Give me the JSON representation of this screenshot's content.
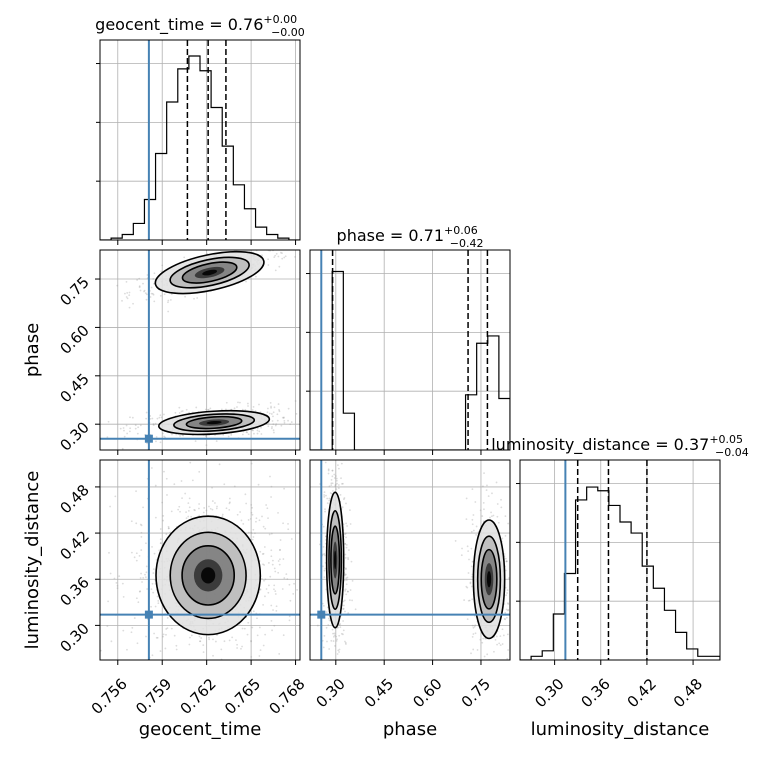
{
  "chart_data": {
    "type": "corner",
    "parameters": [
      "geocent_time",
      "phase",
      "luminosity_distance"
    ],
    "truths": [
      0.7581,
      0.255,
      0.314
    ],
    "titles": [
      {
        "main": "geocent_time = 0.76",
        "sup": "+0.00",
        "sub": "−0.00"
      },
      {
        "main": "phase = 0.71",
        "sup": "+0.06",
        "sub": "−0.42"
      },
      {
        "main": "luminosity_distance = 0.37",
        "sup": "+0.05",
        "sub": "−0.04"
      }
    ],
    "ranges": [
      [
        0.7548,
        0.7683
      ],
      [
        0.22,
        0.84
      ],
      [
        0.255,
        0.515
      ]
    ],
    "ticks": [
      {
        "values": [
          0.756,
          0.759,
          0.762,
          0.765,
          0.768
        ],
        "labels": [
          "0.756",
          "0.759",
          "0.762",
          "0.765",
          "0.768"
        ]
      },
      {
        "values": [
          0.3,
          0.45,
          0.6,
          0.75
        ],
        "labels": [
          "0.30",
          "0.45",
          "0.60",
          "0.75"
        ]
      },
      {
        "values": [
          0.3,
          0.36,
          0.42,
          0.48
        ],
        "labels": [
          "0.30",
          "0.36",
          "0.42",
          "0.48"
        ]
      }
    ],
    "quantiles": [
      [
        0.7607,
        0.7621,
        0.7633
      ],
      [
        0.29,
        0.71,
        0.77
      ],
      [
        0.33,
        0.37,
        0.42
      ]
    ],
    "histograms": [
      [
        0.0,
        0.01,
        0.03,
        0.09,
        0.22,
        0.47,
        0.75,
        0.93,
        1.0,
        0.92,
        0.72,
        0.51,
        0.3,
        0.17,
        0.07,
        0.03,
        0.01,
        0.0
      ],
      [
        0.0,
        0.0,
        0.97,
        0.2,
        0.0,
        0.0,
        0.0,
        0.0,
        0.0,
        0.0,
        0.0,
        0.0,
        0.0,
        0.0,
        0.3,
        0.58,
        0.62,
        0.28
      ],
      [
        0.0,
        0.02,
        0.05,
        0.25,
        0.47,
        0.87,
        0.94,
        0.92,
        0.84,
        0.75,
        0.69,
        0.51,
        0.39,
        0.27,
        0.15,
        0.06,
        0.02,
        0.02
      ]
    ],
    "hist2d": [
      {
        "x": 0,
        "y": 1,
        "blobs": [
          {
            "cx": 0.7622,
            "cy": 0.77,
            "sx": 0.0017,
            "sy": 0.025,
            "rho": 0.75,
            "w": 0.45
          },
          {
            "cx": 0.7625,
            "cy": 0.305,
            "sx": 0.0017,
            "sy": 0.016,
            "rho": 0.35,
            "w": 0.55
          }
        ]
      },
      {
        "x": 0,
        "y": 2,
        "blobs": [
          {
            "cx": 0.7621,
            "cy": 0.365,
            "sx": 0.0016,
            "sy": 0.035,
            "rho": 0.0,
            "w": 1.0
          }
        ]
      },
      {
        "x": 1,
        "y": 2,
        "blobs": [
          {
            "cx": 0.298,
            "cy": 0.385,
            "sx": 0.012,
            "sy": 0.04,
            "rho": 0.0,
            "w": 0.6
          },
          {
            "cx": 0.775,
            "cy": 0.36,
            "sx": 0.022,
            "sy": 0.035,
            "rho": 0.0,
            "w": 0.4
          }
        ]
      }
    ],
    "colors": {
      "truth": "#4682b4",
      "hist": "#000000",
      "grid": "#b0b0b0",
      "scatter": "#9a9a9a"
    },
    "grid": true
  }
}
